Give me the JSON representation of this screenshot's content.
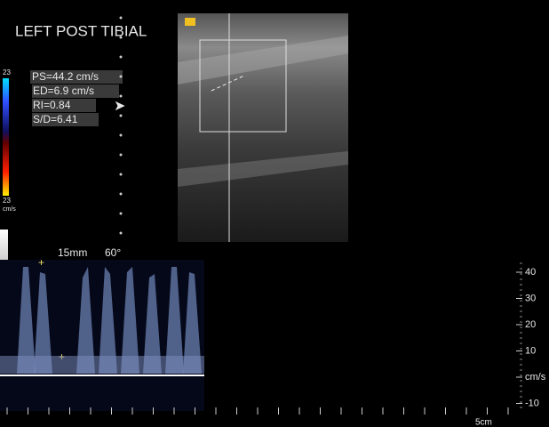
{
  "annotation": {
    "title": "LEFT POST TIBIAL",
    "measurements": [
      "PS=44.2 cm/s",
      "ED=6.9 cm/s",
      "RI=0.84",
      "S/D=6.41"
    ]
  },
  "color_scale": {
    "top": "23",
    "bottom": "23",
    "unit": "cm/s"
  },
  "doppler": {
    "gate": "15mm",
    "angle": "60°",
    "scale": [
      "40",
      "30",
      "20",
      "10",
      "cm/s",
      "-10"
    ],
    "depth": "5cm"
  }
}
